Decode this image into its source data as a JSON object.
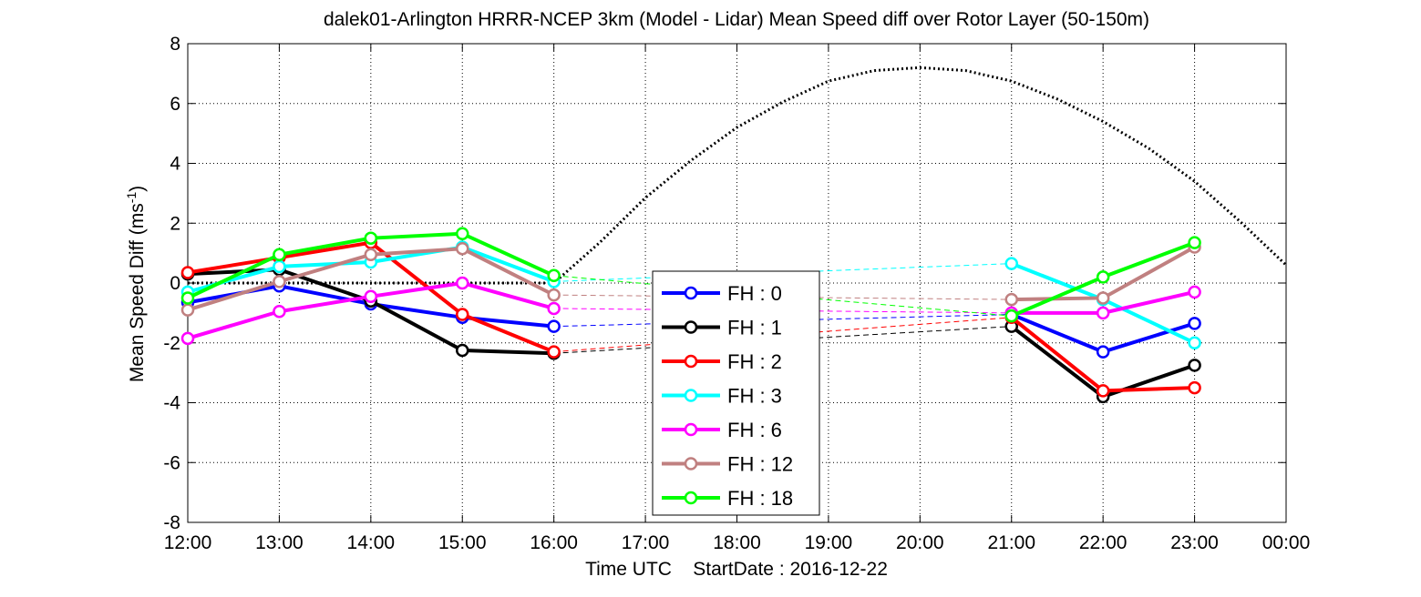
{
  "chart_data": {
    "type": "line",
    "title": "dalek01-Arlington HRRR-NCEP 3km (Model - Lidar) Mean Speed diff over Rotor Layer (50-150m)",
    "xlabel": "Time UTC    StartDate : 2016-12-22",
    "ylabel_main": "Mean Speed Diff (ms",
    "ylabel_sup": "-1",
    "ylabel_end": ")",
    "xlim": [
      12,
      24
    ],
    "ylim": [
      -8,
      8
    ],
    "x_ticks": [
      12,
      13,
      14,
      15,
      16,
      17,
      18,
      19,
      20,
      21,
      22,
      23,
      24
    ],
    "x_tick_labels": [
      "12:00",
      "13:00",
      "14:00",
      "15:00",
      "16:00",
      "17:00",
      "18:00",
      "19:00",
      "20:00",
      "21:00",
      "22:00",
      "23:00",
      "00:00"
    ],
    "y_ticks": [
      -8,
      -6,
      -4,
      -2,
      0,
      2,
      4,
      6,
      8
    ],
    "y_tick_labels": [
      "-8",
      "-6",
      "-4",
      "-2",
      "0",
      "2",
      "4",
      "6",
      "8"
    ],
    "grid": true,
    "legend_position": "center",
    "series": [
      {
        "name": "FH : 0",
        "color": "#0000ff",
        "segments": [
          {
            "x": [
              12,
              13,
              14,
              15,
              16
            ],
            "y": [
              -0.65,
              -0.1,
              -0.7,
              -1.15,
              -1.45
            ]
          },
          {
            "x": [
              21,
              22,
              23
            ],
            "y": [
              -1.05,
              -2.3,
              -1.35
            ]
          }
        ]
      },
      {
        "name": "FH : 1",
        "color": "#000000",
        "segments": [
          {
            "x": [
              12,
              13,
              14,
              15,
              16
            ],
            "y": [
              0.3,
              0.45,
              -0.6,
              -2.25,
              -2.35
            ]
          },
          {
            "x": [
              21,
              22,
              23
            ],
            "y": [
              -1.45,
              -3.8,
              -2.75
            ]
          }
        ]
      },
      {
        "name": "FH : 2",
        "color": "#ff0000",
        "segments": [
          {
            "x": [
              12,
              13,
              14,
              15,
              16
            ],
            "y": [
              0.35,
              0.85,
              1.35,
              -1.05,
              -2.3
            ]
          },
          {
            "x": [
              21,
              22,
              23
            ],
            "y": [
              -1.15,
              -3.6,
              -3.5
            ]
          }
        ]
      },
      {
        "name": "FH : 3",
        "color": "#00ffff",
        "segments": [
          {
            "x": [
              12,
              13,
              14,
              15,
              16
            ],
            "y": [
              -0.3,
              0.55,
              0.7,
              1.2,
              0.05
            ]
          },
          {
            "x": [
              21,
              22,
              23
            ],
            "y": [
              0.65,
              -0.55,
              -2.0
            ]
          }
        ]
      },
      {
        "name": "FH : 6",
        "color": "#ff00ff",
        "segments": [
          {
            "x": [
              12,
              13,
              14,
              15,
              16
            ],
            "y": [
              -1.85,
              -0.95,
              -0.45,
              0.0,
              -0.85
            ]
          },
          {
            "x": [
              21,
              22,
              23
            ],
            "y": [
              -1.0,
              -1.0,
              -0.3
            ]
          }
        ]
      },
      {
        "name": "FH : 12",
        "color": "#c08080",
        "segments": [
          {
            "x": [
              12,
              13,
              14,
              15,
              16
            ],
            "y": [
              -0.9,
              0.05,
              0.95,
              1.15,
              -0.4
            ]
          },
          {
            "x": [
              21,
              22,
              23
            ],
            "y": [
              -0.55,
              -0.5,
              1.2
            ]
          }
        ]
      },
      {
        "name": "FH : 18",
        "color": "#00ff00",
        "segments": [
          {
            "x": [
              12,
              13,
              14,
              15,
              16
            ],
            "y": [
              -0.5,
              0.95,
              1.5,
              1.65,
              0.25
            ]
          },
          {
            "x": [
              21,
              22,
              23
            ],
            "y": [
              -1.1,
              0.2,
              1.35
            ]
          }
        ]
      }
    ],
    "reference_curve": {
      "style": "dotted",
      "color": "#000000",
      "x": [
        12,
        16,
        16.5,
        17,
        17.5,
        18,
        18.5,
        19,
        19.5,
        20,
        20.5,
        21,
        21.5,
        22,
        22.5,
        23,
        23.5,
        24
      ],
      "y": [
        0,
        0,
        1.35,
        2.85,
        4.1,
        5.2,
        6.05,
        6.75,
        7.1,
        7.2,
        7.1,
        6.75,
        6.15,
        5.4,
        4.5,
        3.4,
        2.05,
        0.6
      ]
    }
  }
}
